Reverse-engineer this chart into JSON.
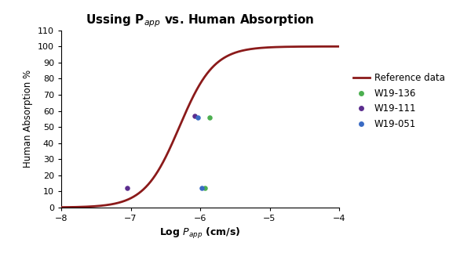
{
  "title": "Ussing P$_{app}$ vs. Human Absorption",
  "xlabel_text": "Log ",
  "xlabel_papp": "P_{app}",
  "xlabel_unit": " (cm/s)",
  "ylabel": "Human Absorption %",
  "xlim": [
    -8,
    -4
  ],
  "ylim": [
    0,
    110
  ],
  "yticks": [
    0,
    10,
    20,
    30,
    40,
    50,
    60,
    70,
    80,
    90,
    100,
    110
  ],
  "xticks": [
    -8,
    -7,
    -6,
    -5,
    -4
  ],
  "curve_color": "#8B1A1A",
  "curve_lw": 2.0,
  "sigmoid_midpoint": -6.3,
  "sigmoid_slope": 4.0,
  "sigmoid_max": 100,
  "scatter_data": {
    "W19-136": {
      "color": "#4CAF50",
      "points": [
        [
          -5.93,
          12
        ],
        [
          -5.87,
          56
        ]
      ]
    },
    "W19-111": {
      "color": "#5B2D8E",
      "points": [
        [
          -7.05,
          12
        ],
        [
          -6.08,
          57
        ]
      ]
    },
    "W19-051": {
      "color": "#3A6BC4",
      "points": [
        [
          -5.98,
          12
        ],
        [
          -6.03,
          56
        ]
      ]
    }
  },
  "legend_labels": [
    "Reference data",
    "W19-136",
    "W19-111",
    "W19-051"
  ],
  "legend_colors": [
    "#8B1A1A",
    "#4CAF50",
    "#5B2D8E",
    "#3A6BC4"
  ],
  "background_color": "#ffffff",
  "fig_width": 6.0,
  "fig_height": 3.23,
  "dpi": 100
}
